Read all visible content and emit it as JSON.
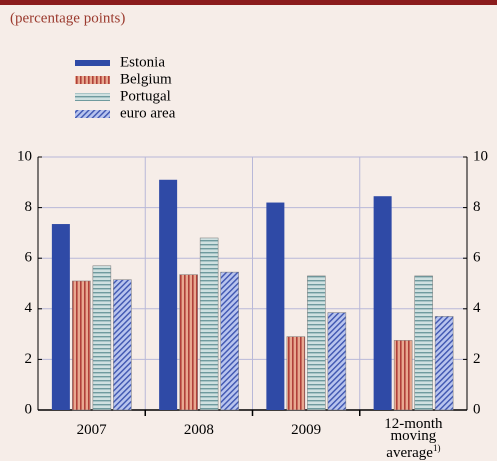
{
  "chart_data": {
    "type": "bar",
    "subtitle": "(percentage points)",
    "categories": [
      "2007",
      "2008",
      "2009",
      "12-month moving average"
    ],
    "category_note": "1)",
    "series": [
      {
        "name": "Estonia",
        "color": "#2f4aa6",
        "hatch": "solid",
        "values": [
          7.35,
          9.1,
          8.2,
          8.45
        ]
      },
      {
        "name": "Belgium",
        "color": "#e8a890",
        "hatch": "vertical",
        "values": [
          5.1,
          5.35,
          2.9,
          2.75
        ]
      },
      {
        "name": "Portugal",
        "color": "#cfe0e0",
        "hatch": "horizontal",
        "values": [
          5.7,
          6.8,
          5.3,
          5.3
        ]
      },
      {
        "name": "euro area",
        "color": "#b8c4ee",
        "hatch": "diagonal",
        "values": [
          5.15,
          5.45,
          3.85,
          3.7
        ]
      }
    ],
    "ylim": [
      0,
      10
    ],
    "yticks": [
      0,
      2,
      4,
      6,
      8,
      10
    ],
    "grid": true,
    "right_axis": true
  }
}
